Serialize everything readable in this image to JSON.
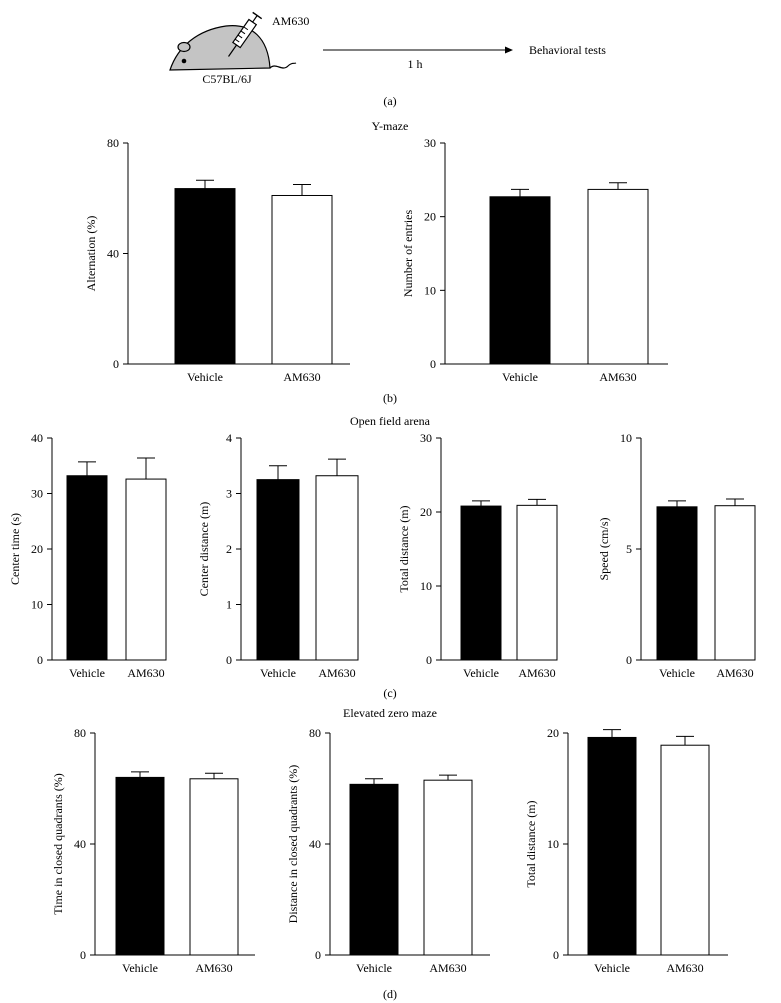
{
  "schematic": {
    "drug": "AM630",
    "strain": "C57BL/6J",
    "interval": "1 h",
    "outcome": "Behavioral tests"
  },
  "panel_labels": {
    "a": "(a)",
    "b": "(b)",
    "c": "(c)",
    "d": "(d)"
  },
  "section_titles": {
    "b": "Y-maze",
    "c": "Open field arena",
    "d": "Elevated zero maze"
  },
  "colors": {
    "vehicle_fill": "#000000",
    "am630_fill": "#ffffff",
    "axis": "#000000"
  },
  "chart_data": [
    {
      "id": "b1",
      "type": "bar",
      "categories": [
        "Vehicle",
        "AM630"
      ],
      "values": [
        63.5,
        61
      ],
      "errors": [
        3,
        4
      ],
      "ylabel": "Alternation (%)",
      "ylim": [
        0,
        80
      ],
      "yticks": [
        0,
        40,
        80
      ]
    },
    {
      "id": "b2",
      "type": "bar",
      "categories": [
        "Vehicle",
        "AM630"
      ],
      "values": [
        22.7,
        23.7
      ],
      "errors": [
        1.0,
        0.9
      ],
      "ylabel": "Number of entries",
      "ylim": [
        0,
        30
      ],
      "yticks": [
        0,
        10,
        20,
        30
      ]
    },
    {
      "id": "c1",
      "type": "bar",
      "categories": [
        "Vehicle",
        "AM630"
      ],
      "values": [
        33.2,
        32.6
      ],
      "errors": [
        2.5,
        3.8
      ],
      "ylabel": "Center time (s)",
      "ylim": [
        0,
        40
      ],
      "yticks": [
        0,
        10,
        20,
        30,
        40
      ]
    },
    {
      "id": "c2",
      "type": "bar",
      "categories": [
        "Vehicle",
        "AM630"
      ],
      "values": [
        3.25,
        3.32
      ],
      "errors": [
        0.25,
        0.3
      ],
      "ylabel": "Center distance (m)",
      "ylim": [
        0,
        4
      ],
      "yticks": [
        0,
        1,
        2,
        3,
        4
      ]
    },
    {
      "id": "c3",
      "type": "bar",
      "categories": [
        "Vehicle",
        "AM630"
      ],
      "values": [
        20.8,
        20.9
      ],
      "errors": [
        0.7,
        0.8
      ],
      "ylabel": "Total distance (m)",
      "ylim": [
        0,
        30
      ],
      "yticks": [
        0,
        10,
        20,
        30
      ]
    },
    {
      "id": "c4",
      "type": "bar",
      "categories": [
        "Vehicle",
        "AM630"
      ],
      "values": [
        6.9,
        6.95
      ],
      "errors": [
        0.27,
        0.3
      ],
      "ylabel": "Speed (cm/s)",
      "ylim": [
        0,
        10
      ],
      "yticks": [
        0,
        5,
        10
      ]
    },
    {
      "id": "d1",
      "type": "bar",
      "categories": [
        "Vehicle",
        "AM630"
      ],
      "values": [
        64,
        63.5
      ],
      "errors": [
        2,
        2
      ],
      "ylabel": "Time in closed quadrants (%)",
      "ylim": [
        0,
        80
      ],
      "yticks": [
        0,
        40,
        80
      ]
    },
    {
      "id": "d2",
      "type": "bar",
      "categories": [
        "Vehicle",
        "AM630"
      ],
      "values": [
        61.5,
        63
      ],
      "errors": [
        2,
        1.8
      ],
      "ylabel": "Distance in closed quadrants (%)",
      "ylim": [
        0,
        80
      ],
      "yticks": [
        0,
        40,
        80
      ]
    },
    {
      "id": "d3",
      "type": "bar",
      "categories": [
        "Vehicle",
        "AM630"
      ],
      "values": [
        19.6,
        18.9
      ],
      "errors": [
        0.7,
        0.8
      ],
      "ylabel": "Total distance (m)",
      "ylim": [
        0,
        20
      ],
      "yticks": [
        0,
        10,
        20
      ]
    }
  ]
}
